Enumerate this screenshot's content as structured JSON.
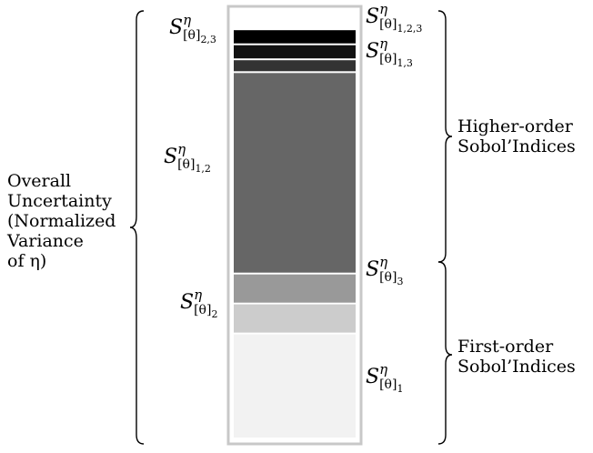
{
  "chart_data": {
    "type": "bar",
    "stacked": true,
    "description_segments_bottom_to_top": [
      {
        "name": "S^η_[θ]_1",
        "fraction": 0.245,
        "color": "#f2f2f2"
      },
      {
        "name": "S^η_[θ]_2",
        "fraction": 0.07,
        "color": "#cccccc"
      },
      {
        "name": "S^η_[θ]_3",
        "fraction": 0.07,
        "color": "#999999"
      },
      {
        "name": "S^η_[θ]_1,2",
        "fraction": 0.47,
        "color": "#666666"
      },
      {
        "name": "S^η_[θ]_1,3",
        "fraction": 0.03,
        "color": "#333333"
      },
      {
        "name": "S^η_[θ]_2,3",
        "fraction": 0.035,
        "color": "#111111"
      },
      {
        "name": "S^η_[θ]_1,2,3",
        "fraction": 0.035,
        "color": "#000000"
      }
    ]
  },
  "labels": {
    "overall": [
      "Overall",
      "Uncertainty",
      "(Normalized",
      "Variance",
      "of η)"
    ],
    "higher": [
      "Higher-order",
      "Sobol’Indices"
    ],
    "first": [
      "First-order",
      "Sobol’Indices"
    ]
  },
  "symbols": {
    "s123": {
      "S": "S",
      "eta": "η",
      "theta": "[θ]",
      "idx": "1,2,3"
    },
    "s23": {
      "S": "S",
      "eta": "η",
      "theta": "[θ]",
      "idx": "2,3"
    },
    "s13": {
      "S": "S",
      "eta": "η",
      "theta": "[θ]",
      "idx": "1,3"
    },
    "s12": {
      "S": "S",
      "eta": "η",
      "theta": "[θ]",
      "idx": "1,2"
    },
    "s3": {
      "S": "S",
      "eta": "η",
      "theta": "[θ]",
      "idx": "3"
    },
    "s2": {
      "S": "S",
      "eta": "η",
      "theta": "[θ]",
      "idx": "2"
    },
    "s1": {
      "S": "S",
      "eta": "η",
      "theta": "[θ]",
      "idx": "1"
    }
  },
  "colors": {
    "frame": "#c8c8c8"
  }
}
